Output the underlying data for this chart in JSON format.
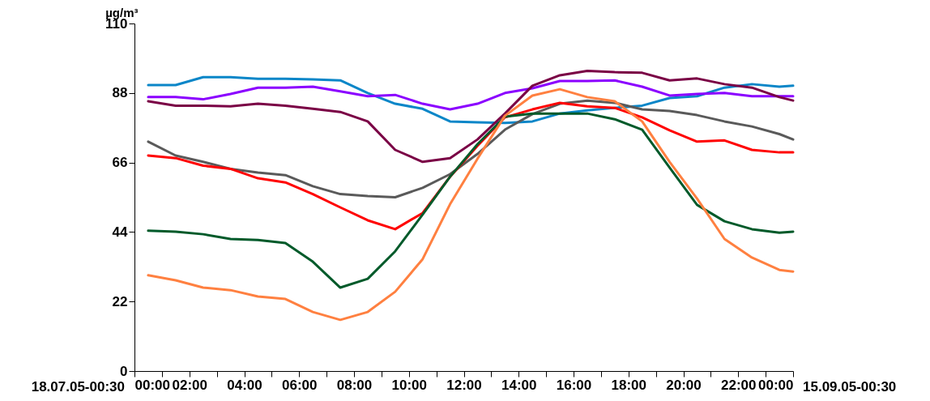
{
  "chart_data": {
    "type": "line",
    "ylabel": "µg/m³",
    "annotations": [
      "18.07.05-00:30",
      "15.09.05-00:30"
    ],
    "x": [
      0.5,
      1.5,
      2.5,
      3.5,
      4.5,
      5.5,
      6.5,
      7.5,
      8.5,
      9.5,
      10.5,
      11.5,
      12.5,
      13.5,
      14.5,
      15.5,
      16.5,
      17.5,
      18.5,
      19.5,
      20.5,
      21.5,
      22.5,
      23.5,
      24
    ],
    "xlim": [
      0,
      24
    ],
    "xticks": [
      {
        "value": 0,
        "label": "00:00"
      },
      {
        "value": 1,
        "label": null
      },
      {
        "value": 2,
        "label": "02:00"
      },
      {
        "value": 3,
        "label": null
      },
      {
        "value": 4,
        "label": "04:00"
      },
      {
        "value": 5,
        "label": null
      },
      {
        "value": 6,
        "label": "06:00"
      },
      {
        "value": 7,
        "label": null
      },
      {
        "value": 8,
        "label": "08:00"
      },
      {
        "value": 9,
        "label": null
      },
      {
        "value": 10,
        "label": "10:00"
      },
      {
        "value": 11,
        "label": null
      },
      {
        "value": 12,
        "label": "12:00"
      },
      {
        "value": 13,
        "label": null
      },
      {
        "value": 14,
        "label": "14:00"
      },
      {
        "value": 15,
        "label": null
      },
      {
        "value": 16,
        "label": "16:00"
      },
      {
        "value": 17,
        "label": null
      },
      {
        "value": 18,
        "label": "18:00"
      },
      {
        "value": 19,
        "label": null
      },
      {
        "value": 20,
        "label": "20:00"
      },
      {
        "value": 21,
        "label": null
      },
      {
        "value": 22,
        "label": "22:00"
      },
      {
        "value": 23,
        "label": null
      },
      {
        "value": 24,
        "label": "00:00"
      }
    ],
    "ylim": [
      0,
      110
    ],
    "yticks": [
      0,
      22,
      44,
      66,
      88,
      110
    ],
    "grid": false,
    "legend": false,
    "line_style": "solid",
    "series": [
      {
        "color": "#0a86c8",
        "values": [
          90.5,
          90.5,
          93,
          93,
          92.5,
          92.5,
          92.3,
          92,
          88,
          84.6,
          83,
          79,
          78.7,
          78.5,
          79,
          81.5,
          82.5,
          83.3,
          84,
          86.4,
          87,
          89.7,
          90.8,
          90,
          90.3
        ]
      },
      {
        "color": "#8b00ff",
        "values": [
          86.7,
          86.7,
          86,
          87.7,
          89.7,
          89.7,
          90,
          88.5,
          87,
          87.4,
          84.6,
          82.8,
          84.6,
          88,
          89.5,
          91.8,
          91.8,
          92,
          90,
          87.2,
          87.7,
          88,
          87,
          87,
          87
        ]
      },
      {
        "color": "#7a0045",
        "values": [
          85.4,
          84,
          84,
          83.8,
          84.6,
          84,
          83,
          82,
          79,
          70,
          66.2,
          67.4,
          73.3,
          81.5,
          90.3,
          93.6,
          95,
          94.6,
          94.4,
          92,
          92.6,
          90.8,
          89.7,
          86.7,
          85.6
        ]
      },
      {
        "color": "#5a5a5a",
        "values": [
          72.6,
          68.2,
          66.2,
          64,
          62.8,
          62,
          58.5,
          56,
          55.4,
          55,
          58,
          62.3,
          68.7,
          76.4,
          81.3,
          84.6,
          85.6,
          84.9,
          82.8,
          82.3,
          81,
          79,
          77.4,
          75,
          73.3
        ]
      },
      {
        "color": "#ff0000",
        "values": [
          68.2,
          67.4,
          65,
          64,
          61,
          59.7,
          56,
          51.8,
          47.7,
          44.9,
          50,
          61.5,
          71.3,
          80.3,
          82.8,
          84.9,
          83.8,
          83.3,
          80.3,
          76.2,
          72.6,
          73,
          70,
          69.2,
          69.2
        ]
      },
      {
        "color": "#005a2a",
        "values": [
          44.4,
          44.1,
          43.3,
          41.8,
          41.5,
          40.5,
          34.6,
          26.4,
          29.2,
          37.9,
          49.5,
          61.5,
          71.8,
          80.5,
          81.5,
          81.5,
          81.5,
          79.7,
          76.4,
          64.4,
          52.6,
          47.4,
          44.9,
          43.8,
          44.1
        ]
      },
      {
        "color": "#ff8040",
        "values": [
          30.3,
          28.7,
          26.4,
          25.6,
          23.6,
          22.8,
          18.7,
          16.2,
          18.7,
          25.1,
          35.4,
          52.8,
          67.2,
          80.8,
          87.2,
          89.2,
          86.7,
          85.4,
          79,
          66.2,
          54.6,
          41.8,
          35.9,
          32,
          31.5
        ]
      }
    ]
  }
}
